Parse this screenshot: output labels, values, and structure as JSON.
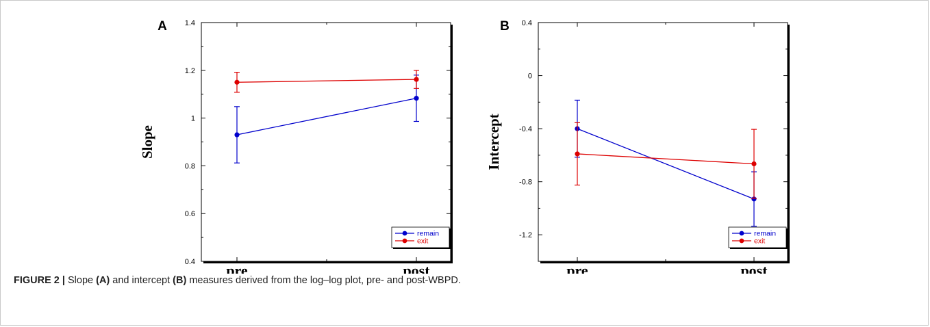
{
  "chart_data": [
    {
      "panel_label": "A",
      "type": "line",
      "categories": [
        "pre",
        "post"
      ],
      "ylabel": "Slope",
      "ylim": [
        0.4,
        1.4
      ],
      "yticks": [
        0.4,
        0.6,
        0.8,
        1,
        1.2,
        1.4
      ],
      "ytick_labels": [
        "0.4",
        "0.6",
        "0.8",
        "1",
        "1.2",
        "1.4"
      ],
      "legend_position": "bottom-right",
      "series": [
        {
          "name": "remain",
          "color": "#0000cc",
          "values": [
            0.93,
            1.083
          ],
          "error": [
            0.118,
            0.097
          ]
        },
        {
          "name": "exit",
          "color": "#dd0000",
          "values": [
            1.15,
            1.162
          ],
          "error": [
            0.042,
            0.038
          ]
        }
      ]
    },
    {
      "panel_label": "B",
      "type": "line",
      "categories": [
        "pre",
        "post"
      ],
      "ylabel": "Intercept",
      "ylim": [
        -1.4,
        0.4
      ],
      "yticks": [
        -1.2,
        -0.8,
        -0.4,
        0,
        0.4
      ],
      "ytick_labels": [
        "-1.2",
        "-0.8",
        "-0.4",
        "0",
        "0.4"
      ],
      "legend_position": "bottom-right",
      "series": [
        {
          "name": "remain",
          "color": "#0000cc",
          "values": [
            -0.4,
            -0.93
          ],
          "error": [
            0.215,
            0.205
          ]
        },
        {
          "name": "exit",
          "color": "#dd0000",
          "values": [
            -0.59,
            -0.665
          ],
          "error": [
            0.235,
            0.26
          ]
        }
      ]
    }
  ],
  "caption": {
    "label": "FIGURE 2 |",
    "text_1": " Slope ",
    "ref_a": "(A)",
    "text_2": " and intercept ",
    "ref_b": "(B)",
    "text_3": " measures derived from the log–log plot, pre- and post-WBPD."
  }
}
